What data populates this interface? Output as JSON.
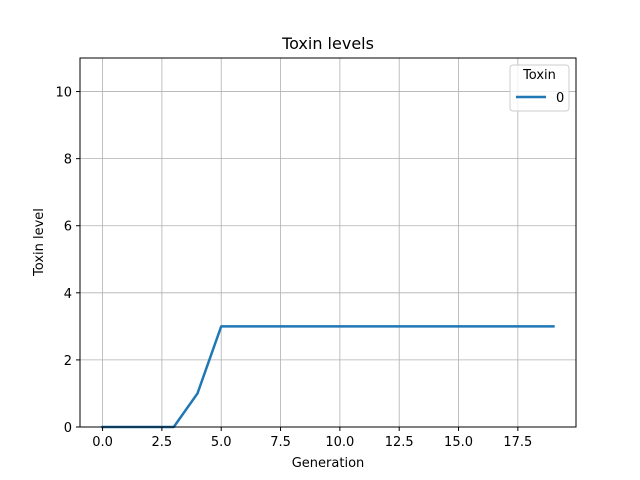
{
  "chart_data": {
    "type": "line",
    "title": "Toxin levels",
    "xlabel": "Generation",
    "ylabel": "Toxin level",
    "xlim": [
      -0.95,
      19.95
    ],
    "ylim": [
      0,
      11
    ],
    "xticks": [
      0,
      2.5,
      5,
      7.5,
      10,
      12.5,
      15,
      17.5
    ],
    "xtick_labels": [
      "0.0",
      "2.5",
      "5.0",
      "7.5",
      "10.0",
      "12.5",
      "15.0",
      "17.5"
    ],
    "yticks": [
      0,
      2,
      4,
      6,
      8,
      10
    ],
    "ytick_labels": [
      "0",
      "2",
      "4",
      "6",
      "8",
      "10"
    ],
    "grid": true,
    "legend": {
      "title": "Toxin",
      "placement": "top-right"
    },
    "series": [
      {
        "name": "0",
        "color": "#1f77b4",
        "x": [
          0,
          1,
          2,
          3,
          4,
          5,
          6,
          7,
          8,
          9,
          10,
          11,
          12,
          13,
          14,
          15,
          16,
          17,
          18,
          19
        ],
        "values": [
          0,
          0,
          0,
          0,
          1,
          3,
          3,
          3,
          3,
          3,
          3,
          3,
          3,
          3,
          3,
          3,
          3,
          3,
          3,
          3
        ]
      }
    ]
  }
}
